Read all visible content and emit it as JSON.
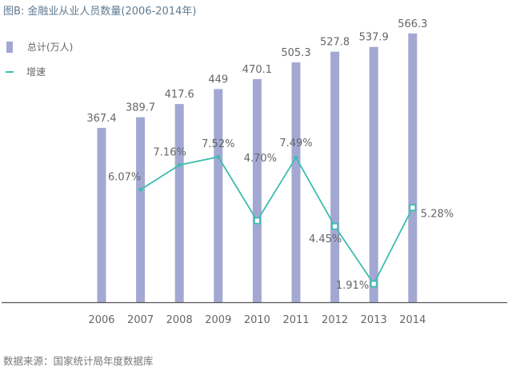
{
  "title": "图B: 金融业从业人员数量(2006-2014年)",
  "legend": {
    "bar": "总计(万人)",
    "line": "增速"
  },
  "source": "数据来源：国家统计局年度数据库",
  "colors": {
    "bar": "#a3a8d3",
    "line": "#3dbdb0",
    "title": "#5f7b94"
  },
  "chart_data": {
    "type": "bar",
    "title": "图B: 金融业从业人员数量(2006-2014年)",
    "categories": [
      "2006",
      "2007",
      "2008",
      "2009",
      "2010",
      "2011",
      "2012",
      "2013",
      "2014"
    ],
    "series": [
      {
        "name": "总计(万人)",
        "type": "bar",
        "values": [
          367.4,
          389.7,
          417.6,
          449,
          470.1,
          505.3,
          527.8,
          537.9,
          566.3
        ],
        "labels": [
          "367.4",
          "389.7",
          "417.6",
          "449",
          "470.1",
          "505.3",
          "527.8",
          "537.9",
          "566.3"
        ]
      },
      {
        "name": "增速",
        "type": "line",
        "values": [
          null,
          6.07,
          7.16,
          7.52,
          4.7,
          7.49,
          4.45,
          1.91,
          5.28
        ],
        "labels": [
          "",
          "6.07%",
          "7.16%",
          "7.52%",
          "4.70%",
          "7.49%",
          "4.45%",
          "1.91%",
          "5.28%"
        ]
      }
    ],
    "legend_position": "top-left",
    "grid": false
  }
}
